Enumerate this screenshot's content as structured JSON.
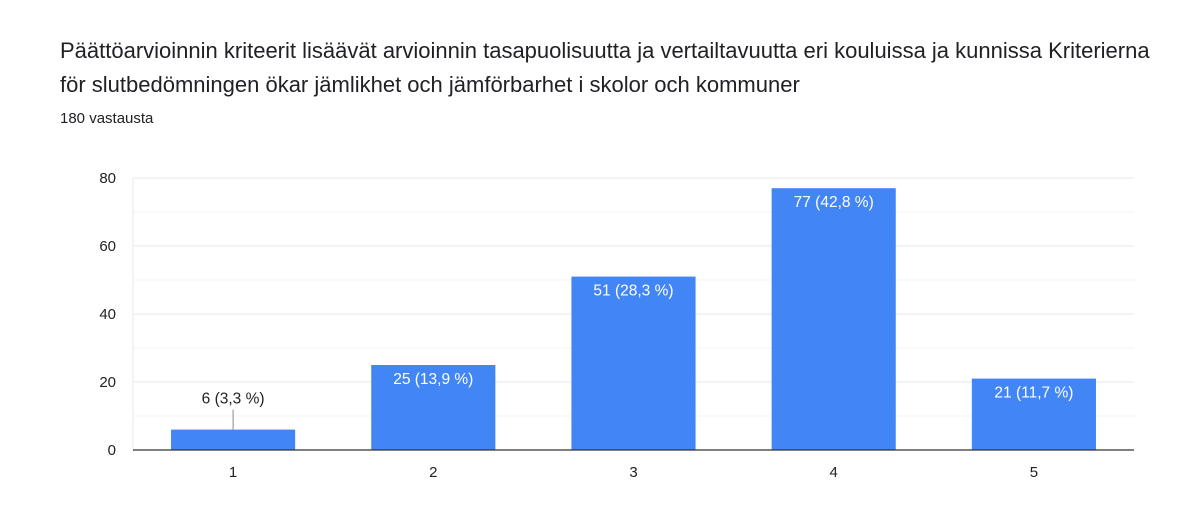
{
  "header": {
    "title": "Päättöarvioinnin kriteerit lisäävät arvioinnin tasapuolisuutta ja vertailtavuutta eri kouluissa ja kunnissa Kriterierna för slutbedömningen ökar jämlikhet och jämförbarhet i skolor och kommuner",
    "responses": "180 vastausta"
  },
  "colors": {
    "bar": "#4285f4",
    "grid": "#e8e8e8",
    "minor_grid": "#f3f3f3",
    "axis": "#333333",
    "label_inside": "#ffffff",
    "label_outside": "#222222"
  },
  "chart_data": {
    "type": "bar",
    "title": "",
    "xlabel": "",
    "ylabel": "",
    "categories": [
      "1",
      "2",
      "3",
      "4",
      "5"
    ],
    "values": [
      6,
      25,
      51,
      77,
      21
    ],
    "data_labels": [
      "6 (3,3 %)",
      "25 (13,9 %)",
      "51 (28,3 %)",
      "77 (42,8 %)",
      "21 (11,7 %)"
    ],
    "ylim": [
      0,
      80
    ],
    "yticks": [
      0,
      20,
      40,
      60,
      80
    ],
    "grid": true,
    "legend": "none"
  }
}
